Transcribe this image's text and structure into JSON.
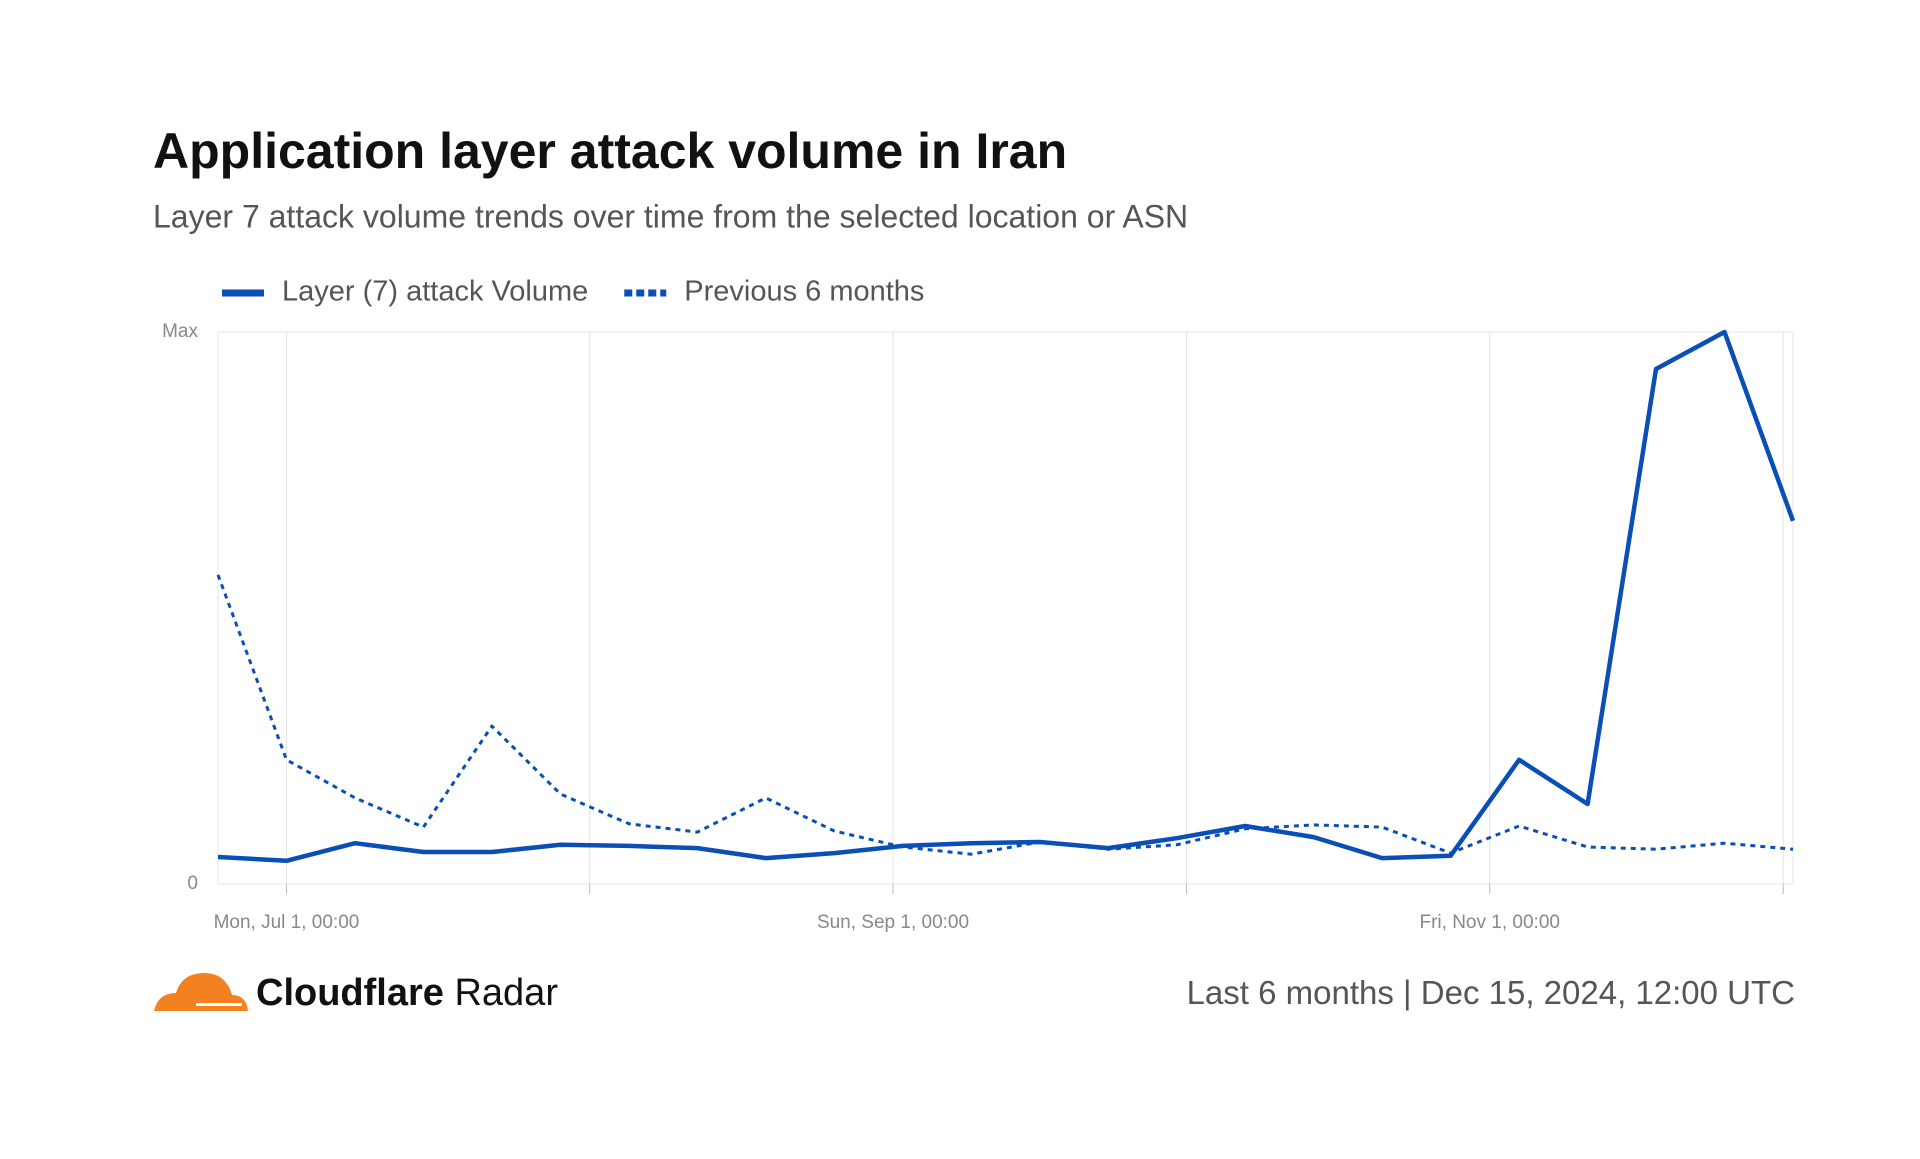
{
  "chart_data": {
    "type": "line",
    "title": "Application layer attack volume in Iran",
    "subtitle": "Layer 7 attack volume trends over time from the selected location or ASN",
    "x": [
      "2024-06-24",
      "2024-07-01",
      "2024-07-08",
      "2024-07-15",
      "2024-07-22",
      "2024-07-29",
      "2024-08-05",
      "2024-08-12",
      "2024-08-19",
      "2024-08-26",
      "2024-09-02",
      "2024-09-09",
      "2024-09-16",
      "2024-09-23",
      "2024-09-30",
      "2024-10-07",
      "2024-10-14",
      "2024-10-21",
      "2024-10-28",
      "2024-11-04",
      "2024-11-11",
      "2024-11-18",
      "2024-11-25",
      "2024-12-02"
    ],
    "series": [
      {
        "name": "Layer (7) attack Volume",
        "color": "#0a4fb5",
        "style": "solid",
        "values": [
          4.9,
          4.2,
          7.4,
          5.8,
          5.8,
          7.1,
          6.9,
          6.5,
          4.7,
          5.6,
          6.9,
          7.4,
          7.6,
          6.5,
          8.3,
          10.5,
          8.5,
          4.7,
          5.1,
          22.5,
          14.5,
          93.3,
          100,
          65.8
        ]
      },
      {
        "name": "Previous 6 months",
        "color": "#0a4fb5",
        "style": "dashed",
        "values": [
          56,
          22.5,
          15.6,
          10.3,
          28.6,
          16.3,
          10.9,
          9.4,
          15.6,
          9.6,
          6.7,
          5.4,
          7.6,
          6.3,
          7.1,
          10,
          10.7,
          10.3,
          5.6,
          10.5,
          6.7,
          6.3,
          7.4,
          6.3
        ]
      }
    ],
    "xlim": [
      "2024-06-24",
      "2024-12-02"
    ],
    "xticks": [
      {
        "value": "2024-07-01",
        "label": "Mon, Jul 1, 00:00"
      },
      {
        "value": "2024-08-01",
        "label": null
      },
      {
        "value": "2024-09-01",
        "label": "Sun, Sep 1, 00:00"
      },
      {
        "value": "2024-10-01",
        "label": null
      },
      {
        "value": "2024-11-01",
        "label": "Fri, Nov 1, 00:00"
      },
      {
        "value": "2024-12-01",
        "label": null
      }
    ],
    "ylim": [
      0,
      100
    ],
    "yticks": [
      0,
      {
        "value": 100,
        "label": "Max"
      }
    ],
    "grid": true,
    "legend": "top-left"
  },
  "footer": {
    "brand_bold": "Cloudflare",
    "brand_light": "Radar",
    "period": "Last 6 months",
    "timestamp": "Dec 15, 2024, 12:00 UTC"
  }
}
